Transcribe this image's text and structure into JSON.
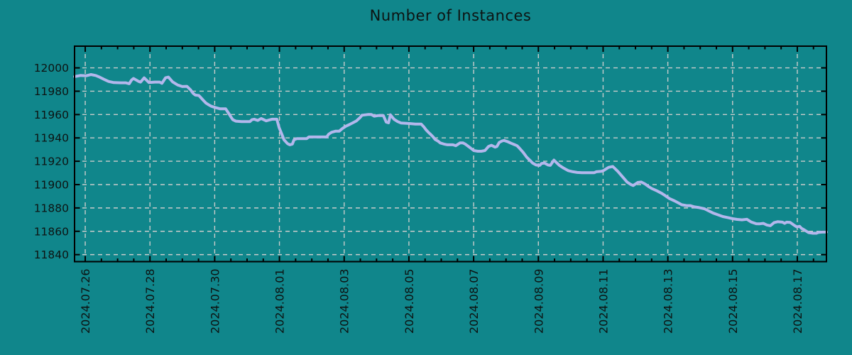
{
  "title": "Number of Instances",
  "colors": {
    "background": "#10868b",
    "line": "#b3b7ec",
    "grid": "#c9cccb",
    "axis": "#000000",
    "text": "#0d1413"
  },
  "chart_data": {
    "type": "line",
    "title": "Number of Instances",
    "xlabel": "",
    "ylabel": "",
    "x_unit": "days since 2024.07.26",
    "xlim": [
      -0.33,
      22.9
    ],
    "ylim": [
      11834,
      12018.6
    ],
    "grid": true,
    "grid_style": "dashed",
    "legend": "none",
    "y_ticks": [
      11840,
      11860,
      11880,
      11900,
      11920,
      11940,
      11960,
      11980,
      12000
    ],
    "y_tick_labels": [
      "11840",
      "11860",
      "11880",
      "11900",
      "11920",
      "11940",
      "11960",
      "11980",
      "12000"
    ],
    "x_tick_days": [
      0,
      2,
      4,
      6,
      8,
      10,
      12,
      14,
      16,
      18,
      20,
      22
    ],
    "x_tick_labels": [
      "2024.07.26",
      "2024.07.28",
      "2024.07.30",
      "2024.08.01",
      "2024.08.03",
      "2024.08.05",
      "2024.08.07",
      "2024.08.09",
      "2024.08.11",
      "2024.08.13",
      "2024.08.15",
      "2024.08.17"
    ],
    "x_minor_tick_step": 0.5,
    "series": [
      {
        "name": "instances",
        "points": [
          [
            -0.33,
            11992.5
          ],
          [
            -0.15,
            11993.5
          ],
          [
            0.02,
            11993.2
          ],
          [
            0.18,
            11994.3
          ],
          [
            0.33,
            11993.4
          ],
          [
            0.44,
            11992.1
          ],
          [
            0.59,
            11990.1
          ],
          [
            0.72,
            11988.4
          ],
          [
            0.88,
            11987.4
          ],
          [
            1.1,
            11987.2
          ],
          [
            1.25,
            11987.2
          ],
          [
            1.36,
            11986.4
          ],
          [
            1.43,
            11989.5
          ],
          [
            1.49,
            11990.9
          ],
          [
            1.65,
            11988.4
          ],
          [
            1.71,
            11987.8
          ],
          [
            1.82,
            11991.5
          ],
          [
            1.97,
            11987.4
          ],
          [
            2.15,
            11987.8
          ],
          [
            2.3,
            11987.8
          ],
          [
            2.37,
            11986.8
          ],
          [
            2.48,
            11991.5
          ],
          [
            2.57,
            11992.1
          ],
          [
            2.7,
            11988.0
          ],
          [
            2.85,
            11985.4
          ],
          [
            3.0,
            11984.0
          ],
          [
            3.14,
            11984.2
          ],
          [
            3.25,
            11981.3
          ],
          [
            3.33,
            11978.3
          ],
          [
            3.4,
            11976.7
          ],
          [
            3.51,
            11976.3
          ],
          [
            3.66,
            11971.8
          ],
          [
            3.73,
            11969.8
          ],
          [
            3.8,
            11968.6
          ],
          [
            3.9,
            11967.1
          ],
          [
            4.01,
            11966.1
          ],
          [
            4.17,
            11964.9
          ],
          [
            4.34,
            11964.9
          ],
          [
            4.43,
            11961.1
          ],
          [
            4.5,
            11958.0
          ],
          [
            4.56,
            11955.6
          ],
          [
            4.65,
            11954.4
          ],
          [
            4.83,
            11954.0
          ],
          [
            5.09,
            11954.0
          ],
          [
            5.15,
            11955.6
          ],
          [
            5.22,
            11956.0
          ],
          [
            5.33,
            11955.0
          ],
          [
            5.44,
            11956.6
          ],
          [
            5.59,
            11954.6
          ],
          [
            5.77,
            11956.0
          ],
          [
            5.92,
            11956.0
          ],
          [
            5.99,
            11948.9
          ],
          [
            6.08,
            11942.8
          ],
          [
            6.14,
            11938.4
          ],
          [
            6.25,
            11935.1
          ],
          [
            6.32,
            11934.1
          ],
          [
            6.4,
            11934.7
          ],
          [
            6.45,
            11938.4
          ],
          [
            6.54,
            11939.4
          ],
          [
            6.84,
            11939.4
          ],
          [
            6.91,
            11940.8
          ],
          [
            7.46,
            11940.8
          ],
          [
            7.52,
            11943.2
          ],
          [
            7.61,
            11944.8
          ],
          [
            7.74,
            11945.8
          ],
          [
            7.85,
            11945.8
          ],
          [
            7.94,
            11947.9
          ],
          [
            8.05,
            11950.0
          ],
          [
            8.16,
            11951.4
          ],
          [
            8.27,
            11953.0
          ],
          [
            8.38,
            11954.6
          ],
          [
            8.49,
            11957.4
          ],
          [
            8.55,
            11959.4
          ],
          [
            8.73,
            11960.0
          ],
          [
            8.84,
            11960.0
          ],
          [
            8.93,
            11958.6
          ],
          [
            9.06,
            11959.2
          ],
          [
            9.21,
            11959.2
          ],
          [
            9.3,
            11953.5
          ],
          [
            9.37,
            11953.0
          ],
          [
            9.43,
            11959.8
          ],
          [
            9.54,
            11956.0
          ],
          [
            9.65,
            11954.0
          ],
          [
            9.76,
            11952.7
          ],
          [
            10.02,
            11952.3
          ],
          [
            10.2,
            11951.9
          ],
          [
            10.38,
            11951.9
          ],
          [
            10.46,
            11949.5
          ],
          [
            10.53,
            11946.9
          ],
          [
            10.6,
            11944.8
          ],
          [
            10.68,
            11942.8
          ],
          [
            10.75,
            11940.8
          ],
          [
            10.81,
            11938.7
          ],
          [
            10.9,
            11937.3
          ],
          [
            10.97,
            11935.7
          ],
          [
            11.08,
            11934.7
          ],
          [
            11.19,
            11934.1
          ],
          [
            11.36,
            11934.1
          ],
          [
            11.45,
            11933.3
          ],
          [
            11.58,
            11935.7
          ],
          [
            11.67,
            11935.7
          ],
          [
            11.74,
            11934.7
          ],
          [
            11.89,
            11931.6
          ],
          [
            12.0,
            11929.2
          ],
          [
            12.13,
            11928.6
          ],
          [
            12.24,
            11928.6
          ],
          [
            12.35,
            11929.2
          ],
          [
            12.46,
            11932.7
          ],
          [
            12.55,
            11933.7
          ],
          [
            12.66,
            11932.1
          ],
          [
            12.72,
            11932.7
          ],
          [
            12.79,
            11936.1
          ],
          [
            12.88,
            11937.4
          ],
          [
            12.94,
            11937.8
          ],
          [
            13.05,
            11936.8
          ],
          [
            13.16,
            11935.4
          ],
          [
            13.27,
            11934.1
          ],
          [
            13.34,
            11933.3
          ],
          [
            13.42,
            11931.1
          ],
          [
            13.53,
            11927.6
          ],
          [
            13.64,
            11923.5
          ],
          [
            13.75,
            11920.5
          ],
          [
            13.82,
            11918.5
          ],
          [
            13.93,
            11916.8
          ],
          [
            14.04,
            11916.5
          ],
          [
            14.1,
            11918.1
          ],
          [
            14.19,
            11918.5
          ],
          [
            14.3,
            11916.8
          ],
          [
            14.37,
            11916.5
          ],
          [
            14.48,
            11921.0
          ],
          [
            14.59,
            11918.0
          ],
          [
            14.65,
            11916.5
          ],
          [
            14.76,
            11914.5
          ],
          [
            14.92,
            11912.0
          ],
          [
            15.07,
            11911.0
          ],
          [
            15.2,
            11910.4
          ],
          [
            15.35,
            11910.2
          ],
          [
            15.73,
            11910.2
          ],
          [
            15.79,
            11911.0
          ],
          [
            15.95,
            11911.4
          ],
          [
            16.01,
            11912.0
          ],
          [
            16.17,
            11914.8
          ],
          [
            16.3,
            11915.5
          ],
          [
            16.45,
            11911.4
          ],
          [
            16.61,
            11906.3
          ],
          [
            16.74,
            11902.2
          ],
          [
            16.85,
            11900.2
          ],
          [
            16.93,
            11899.2
          ],
          [
            17.07,
            11901.8
          ],
          [
            17.18,
            11902.2
          ],
          [
            17.29,
            11900.6
          ],
          [
            17.39,
            11898.6
          ],
          [
            17.5,
            11896.7
          ],
          [
            17.66,
            11894.7
          ],
          [
            17.81,
            11892.5
          ],
          [
            17.92,
            11890.5
          ],
          [
            18.05,
            11888.0
          ],
          [
            18.21,
            11886.0
          ],
          [
            18.32,
            11884.4
          ],
          [
            18.43,
            11882.7
          ],
          [
            18.58,
            11882.0
          ],
          [
            18.69,
            11882.0
          ],
          [
            18.82,
            11880.9
          ],
          [
            18.97,
            11880.3
          ],
          [
            19.13,
            11879.3
          ],
          [
            19.26,
            11877.5
          ],
          [
            19.41,
            11875.5
          ],
          [
            19.57,
            11873.9
          ],
          [
            19.7,
            11872.6
          ],
          [
            19.85,
            11871.8
          ],
          [
            20.0,
            11870.8
          ],
          [
            20.14,
            11870.2
          ],
          [
            20.29,
            11869.8
          ],
          [
            20.44,
            11870.3
          ],
          [
            20.57,
            11868.0
          ],
          [
            20.73,
            11866.5
          ],
          [
            20.84,
            11866.4
          ],
          [
            20.95,
            11866.8
          ],
          [
            21.06,
            11865.4
          ],
          [
            21.17,
            11864.8
          ],
          [
            21.28,
            11867.4
          ],
          [
            21.39,
            11868.2
          ],
          [
            21.54,
            11867.8
          ],
          [
            21.61,
            11866.8
          ],
          [
            21.67,
            11867.8
          ],
          [
            21.78,
            11867.6
          ],
          [
            21.89,
            11865.4
          ],
          [
            21.98,
            11863.8
          ],
          [
            22.07,
            11864.2
          ],
          [
            22.13,
            11862.5
          ],
          [
            22.22,
            11861.1
          ],
          [
            22.29,
            11859.9
          ],
          [
            22.35,
            11858.9
          ],
          [
            22.48,
            11858.3
          ],
          [
            22.59,
            11858.3
          ],
          [
            22.66,
            11859.1
          ],
          [
            22.77,
            11859.3
          ],
          [
            22.9,
            11859.3
          ]
        ]
      }
    ]
  }
}
